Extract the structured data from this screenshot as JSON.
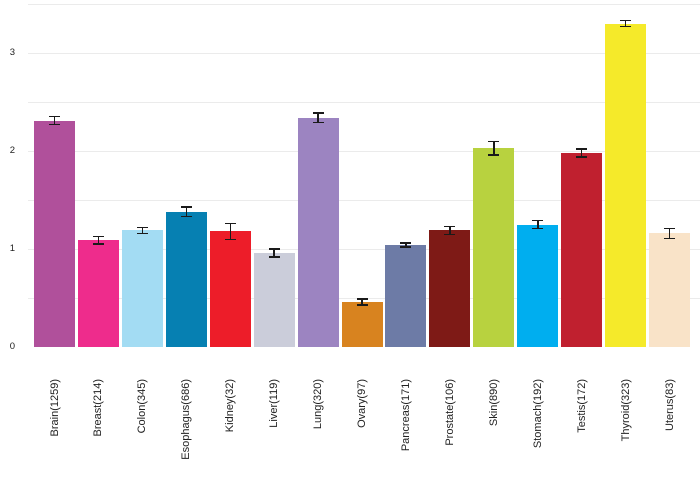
{
  "chart_data": {
    "type": "bar",
    "title": "",
    "xlabel": "",
    "ylabel": "",
    "categories": [
      "Brain(1259)",
      "Breast(214)",
      "Colon(345)",
      "Esophagus(686)",
      "Kidney(32)",
      "Liver(119)",
      "Lung(320)",
      "Ovary(97)",
      "Pancreas(171)",
      "Prostate(106)",
      "Skin(890)",
      "Stomach(192)",
      "Testis(172)",
      "Thyroid(323)",
      "Uterus(83)"
    ],
    "values": [
      2.31,
      1.09,
      1.19,
      1.38,
      1.18,
      0.96,
      2.34,
      0.46,
      1.04,
      1.19,
      2.03,
      1.25,
      1.98,
      3.3,
      1.16
    ],
    "errors": [
      0.04,
      0.04,
      0.03,
      0.05,
      0.08,
      0.04,
      0.05,
      0.03,
      0.02,
      0.04,
      0.07,
      0.04,
      0.04,
      0.03,
      0.05
    ],
    "colors": [
      "#b0509b",
      "#ee2c8c",
      "#a3dcf3",
      "#0680b2",
      "#ed1d29",
      "#cbcdda",
      "#9c84c1",
      "#d8831f",
      "#6d7ba6",
      "#7e1a16",
      "#b8d23f",
      "#00aeef",
      "#c0202f",
      "#f5ea2a",
      "#f9e3c8"
    ],
    "ylim": [
      0,
      3.5
    ],
    "yticks": [
      0,
      1,
      2,
      3
    ],
    "gridline_step": 0.5,
    "grid": true,
    "legend_position": "none",
    "x_tick_rotation_deg": 90,
    "error_bar_color": "#1a1a1a",
    "gridline_color": "#ebebeb",
    "background_color": "#ffffff",
    "tick_label_color": "#222222"
  }
}
